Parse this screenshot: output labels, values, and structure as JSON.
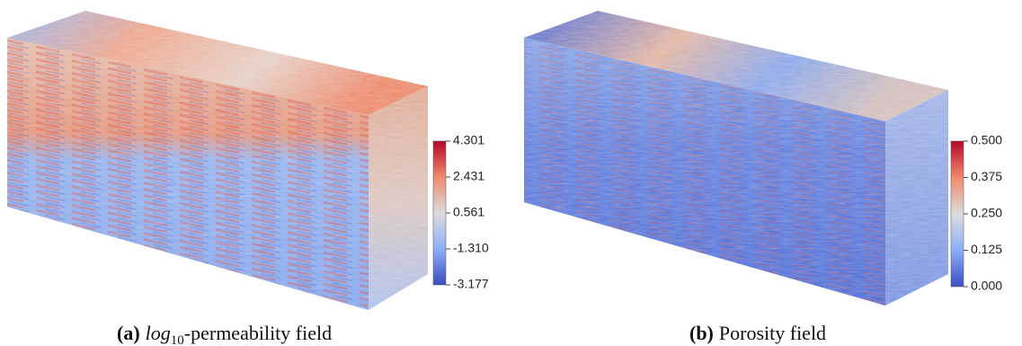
{
  "panels": [
    {
      "caption": {
        "label": "(a)",
        "math": "log",
        "subscript": "10",
        "text": "-permeability field"
      },
      "colorbar": {
        "ticks": [
          "4.301",
          "2.431",
          "0.561",
          "-1.310",
          "-3.177"
        ]
      }
    },
    {
      "caption": {
        "label": "(b)",
        "text": "Porosity field"
      },
      "colorbar": {
        "ticks": [
          "0.500",
          "0.375",
          "0.250",
          "0.125",
          "0.000"
        ]
      }
    }
  ]
}
